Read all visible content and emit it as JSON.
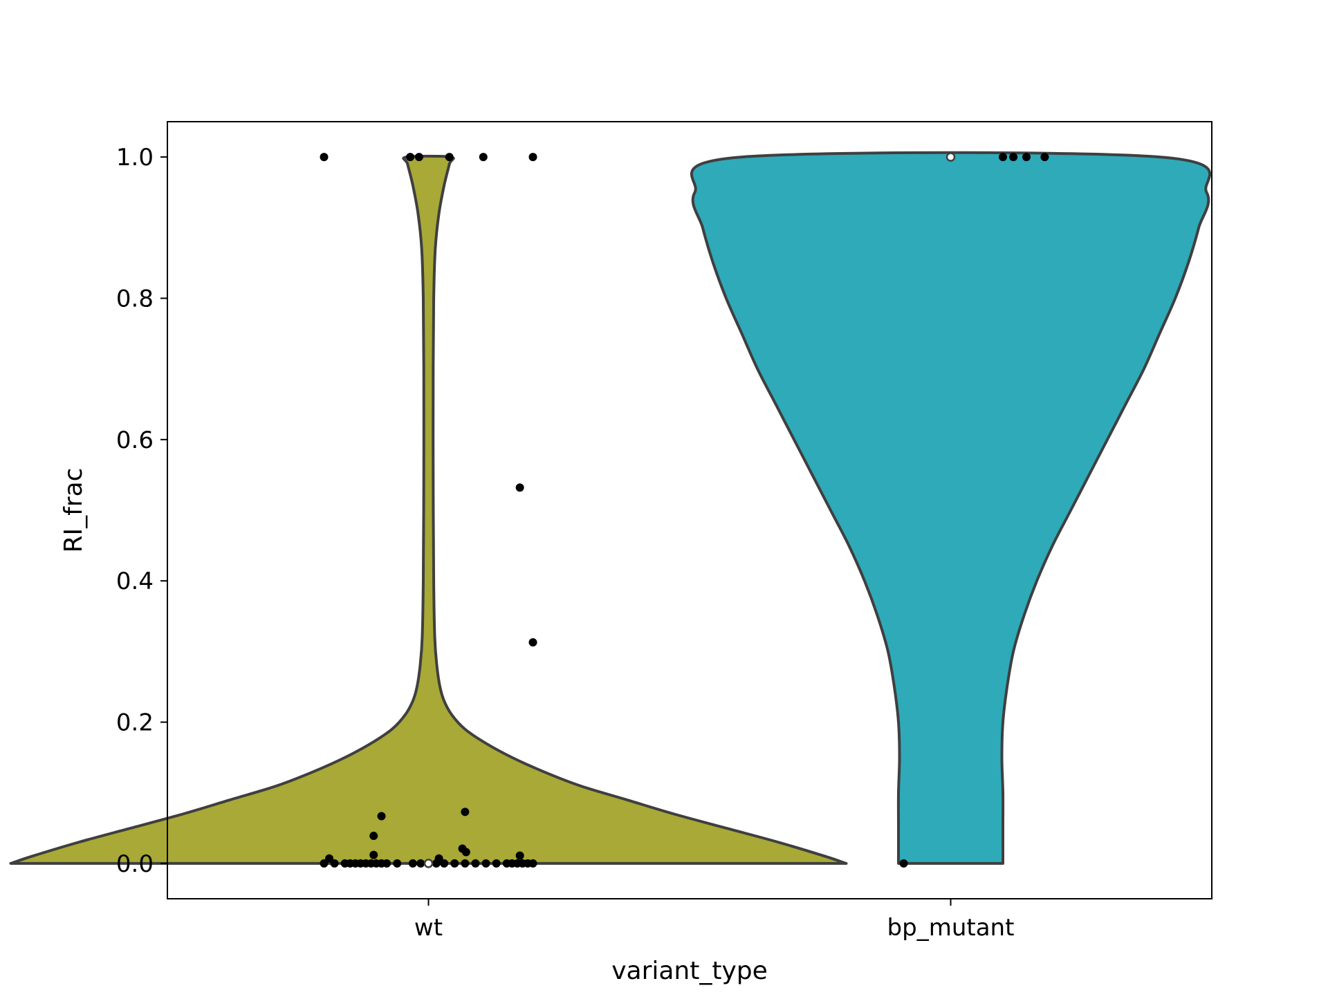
{
  "chart_data": {
    "type": "violin",
    "xlabel": "variant_type",
    "ylabel": "RI_frac",
    "categories": [
      "wt",
      "bp_mutant"
    ],
    "ylim": [
      -0.05,
      1.05
    ],
    "yticks": [
      0.0,
      0.2,
      0.4,
      0.6,
      0.8,
      1.0
    ],
    "ytick_labels": [
      "0.0",
      "0.2",
      "0.4",
      "0.6",
      "0.8",
      "1.0"
    ],
    "grid": false,
    "legend": "none",
    "colors": {
      "wt": "#a8a936",
      "bp_mutant": "#2eaab9",
      "outline": "#3f3f3f",
      "points": "#000000"
    },
    "series": [
      {
        "category": "wt",
        "median": 0.0,
        "density_profile": [
          [
            0.0,
            0.8
          ],
          [
            0.01,
            0.76
          ],
          [
            0.03,
            0.67
          ],
          [
            0.05,
            0.57
          ],
          [
            0.07,
            0.47
          ],
          [
            0.09,
            0.38
          ],
          [
            0.11,
            0.29
          ],
          [
            0.13,
            0.22
          ],
          [
            0.15,
            0.16
          ],
          [
            0.17,
            0.11
          ],
          [
            0.19,
            0.07
          ],
          [
            0.21,
            0.045
          ],
          [
            0.23,
            0.03
          ],
          [
            0.25,
            0.022
          ],
          [
            0.28,
            0.016
          ],
          [
            0.32,
            0.012
          ],
          [
            0.4,
            0.01
          ],
          [
            0.55,
            0.009
          ],
          [
            0.7,
            0.009
          ],
          [
            0.8,
            0.01
          ],
          [
            0.87,
            0.013
          ],
          [
            0.92,
            0.02
          ],
          [
            0.96,
            0.03
          ],
          [
            0.99,
            0.04
          ],
          [
            1.0,
            0.042
          ]
        ],
        "points": [
          [
            -0.2,
            1.0
          ],
          [
            -0.035,
            1.0
          ],
          [
            -0.018,
            1.0
          ],
          [
            0.04,
            1.0
          ],
          [
            0.105,
            1.0
          ],
          [
            0.2,
            1.0
          ],
          [
            0.175,
            0.532
          ],
          [
            0.2,
            0.313
          ],
          [
            -0.09,
            0.067
          ],
          [
            0.07,
            0.073
          ],
          [
            -0.105,
            0.039
          ],
          [
            0.065,
            0.021
          ],
          [
            0.072,
            0.016
          ],
          [
            -0.105,
            0.012
          ],
          [
            0.175,
            0.011
          ],
          [
            -0.19,
            0.007
          ],
          [
            0.02,
            0.007
          ],
          [
            -0.2,
            0.0
          ],
          [
            -0.18,
            0.0
          ],
          [
            -0.16,
            0.0
          ],
          [
            -0.15,
            0.0
          ],
          [
            -0.14,
            0.0
          ],
          [
            -0.13,
            0.0
          ],
          [
            -0.12,
            0.0
          ],
          [
            -0.11,
            0.0
          ],
          [
            -0.1,
            0.0
          ],
          [
            -0.09,
            0.0
          ],
          [
            -0.08,
            0.0
          ],
          [
            -0.06,
            0.0
          ],
          [
            -0.03,
            0.0
          ],
          [
            -0.015,
            0.0
          ],
          [
            0.0,
            0.0
          ],
          [
            0.015,
            0.0
          ],
          [
            0.03,
            0.0
          ],
          [
            0.05,
            0.0
          ],
          [
            0.07,
            0.0
          ],
          [
            0.09,
            0.0
          ],
          [
            0.11,
            0.0
          ],
          [
            0.13,
            0.0
          ],
          [
            0.15,
            0.0
          ],
          [
            0.16,
            0.0
          ],
          [
            0.17,
            0.0
          ],
          [
            0.18,
            0.0
          ],
          [
            0.19,
            0.0
          ],
          [
            0.2,
            0.0
          ]
        ]
      },
      {
        "category": "bp_mutant",
        "median": 1.0,
        "density_profile": [
          [
            0.0,
            0.1
          ],
          [
            0.05,
            0.1
          ],
          [
            0.1,
            0.1
          ],
          [
            0.15,
            0.098
          ],
          [
            0.2,
            0.1
          ],
          [
            0.25,
            0.108
          ],
          [
            0.3,
            0.12
          ],
          [
            0.35,
            0.14
          ],
          [
            0.4,
            0.165
          ],
          [
            0.45,
            0.195
          ],
          [
            0.5,
            0.23
          ],
          [
            0.55,
            0.265
          ],
          [
            0.6,
            0.3
          ],
          [
            0.65,
            0.335
          ],
          [
            0.7,
            0.37
          ],
          [
            0.75,
            0.4
          ],
          [
            0.8,
            0.43
          ],
          [
            0.85,
            0.455
          ],
          [
            0.9,
            0.475
          ],
          [
            0.95,
            0.49
          ],
          [
            1.0,
            0.4
          ]
        ],
        "points": [
          [
            -0.09,
            0.0
          ],
          [
            0.1,
            1.0
          ],
          [
            0.12,
            1.0
          ],
          [
            0.145,
            1.0
          ],
          [
            0.18,
            1.0
          ]
        ]
      }
    ]
  }
}
